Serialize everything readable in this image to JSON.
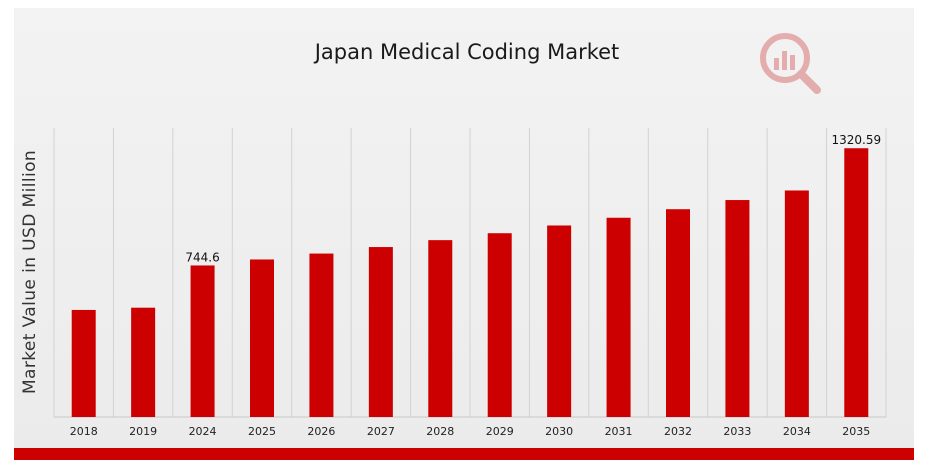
{
  "chart_data": {
    "type": "bar",
    "title": "Japan Medical Coding Market",
    "xlabel": "",
    "ylabel": "Market Value in USD Million",
    "categories": [
      "2018",
      "2019",
      "2024",
      "2025",
      "2026",
      "2027",
      "2028",
      "2029",
      "2030",
      "2031",
      "2032",
      "2033",
      "2034",
      "2035"
    ],
    "values": [
      526,
      537,
      744.6,
      774,
      803,
      835,
      869,
      903,
      941,
      979,
      1021,
      1066,
      1113,
      1320.59
    ],
    "data_labels": {
      "2024": "744.6",
      "2035": "1320.59"
    },
    "ylim": [
      0,
      1420
    ],
    "grid": "vertical",
    "bar_color": "#cc0000"
  }
}
